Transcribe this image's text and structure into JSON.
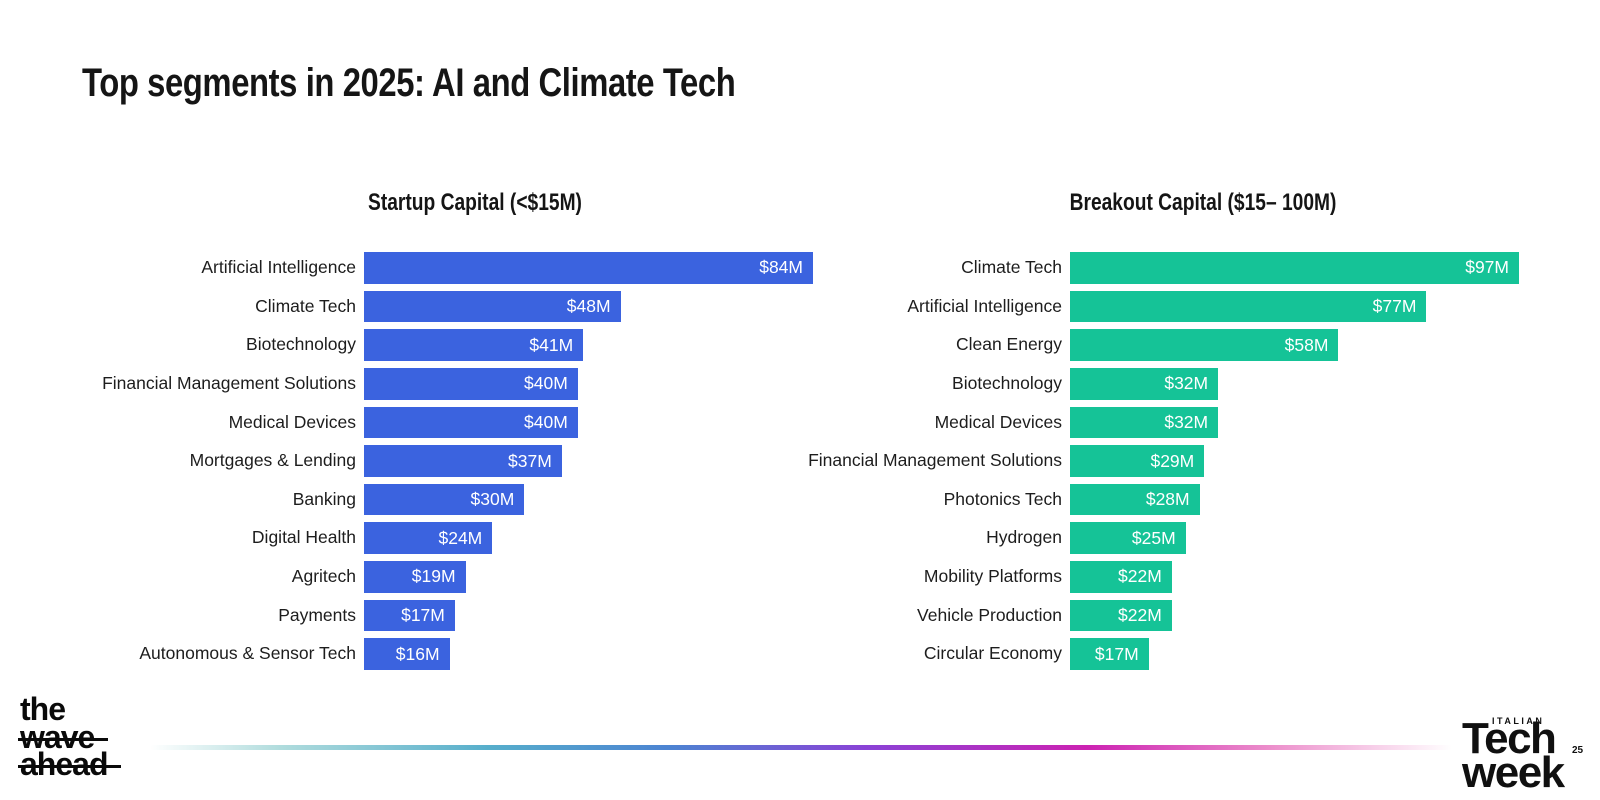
{
  "slide": {
    "title": "Top segments in 2025: AI and Climate Tech"
  },
  "chart_data": [
    {
      "type": "bar",
      "orientation": "horizontal",
      "title": "Startup Capital (<$15M)",
      "categories": [
        "Artificial Intelligence",
        "Climate Tech",
        "Biotechnology",
        "Financial Management Solutions",
        "Medical Devices",
        "Mortgages & Lending",
        "Banking",
        "Digital Health",
        "Agritech",
        "Payments",
        "Autonomous & Sensor Tech"
      ],
      "values": [
        84,
        48,
        41,
        40,
        40,
        37,
        30,
        24,
        19,
        17,
        16
      ],
      "value_labels": [
        "$84M",
        "$48M",
        "$41M",
        "$40M",
        "$40M",
        "$37M",
        "$30M",
        "$24M",
        "$19M",
        "$17M",
        "$16M"
      ],
      "unit": "M USD",
      "bar_color": "#3B63DF",
      "xlim": [
        0,
        84
      ],
      "grid": false,
      "value_label_position": "inside-end"
    },
    {
      "type": "bar",
      "orientation": "horizontal",
      "title": "Breakout Capital ($15– 100M)",
      "categories": [
        "Climate Tech",
        "Artificial Intelligence",
        "Clean Energy",
        "Biotechnology",
        "Medical Devices",
        "Financial Management Solutions",
        "Photonics Tech",
        "Hydrogen",
        "Mobility Platforms",
        "Vehicle Production",
        "Circular Economy"
      ],
      "values": [
        97,
        77,
        58,
        32,
        32,
        29,
        28,
        25,
        22,
        22,
        17
      ],
      "value_labels": [
        "$97M",
        "$77M",
        "$58M",
        "$32M",
        "$32M",
        "$29M",
        "$28M",
        "$25M",
        "$22M",
        "$22M",
        "$17M"
      ],
      "unit": "M USD",
      "bar_color": "#15C397",
      "xlim": [
        0,
        97
      ],
      "grid": false,
      "value_label_position": "inside-end"
    }
  ],
  "footer": {
    "wave_logo": {
      "lines": [
        "the",
        "wave",
        "ahead"
      ]
    },
    "itw_logo": {
      "kicker": "ITALIAN",
      "word1": "Tech",
      "word2": "week",
      "year": "25"
    },
    "gradient_colors": [
      "#b0dcdd",
      "#56aecb",
      "#4c83d2",
      "#8a42d6",
      "#cc22b2",
      "#ec8ecb"
    ]
  }
}
